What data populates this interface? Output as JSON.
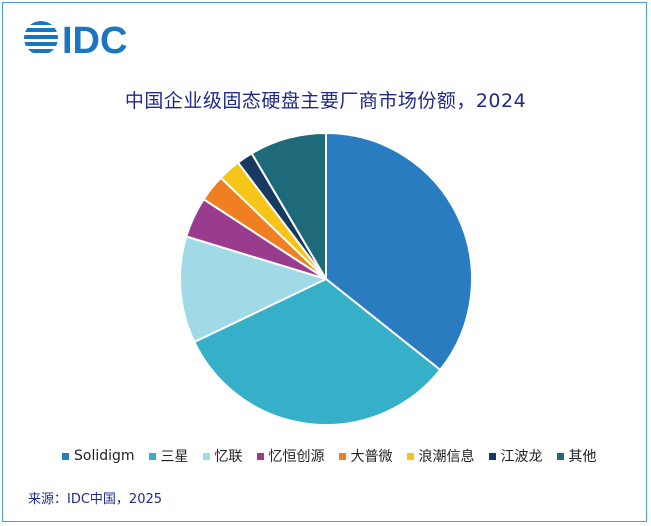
{
  "logo": {
    "text": "IDC"
  },
  "title": "中国企业级固态硬盘主要厂商市场份额，2024",
  "source": "来源：IDC中国，2025",
  "colors": {
    "frame": "#4a9fd6",
    "title": "#1f2a8a",
    "logo": "#1a75c2"
  },
  "chart_data": {
    "type": "pie",
    "title": "中国企业级固态硬盘主要厂商市场份额，2024",
    "legend_position": "bottom",
    "start_angle_deg": 0,
    "direction": "clockwise",
    "slices": [
      {
        "label": "Solidigm",
        "value": 35.7,
        "color": "#2a7cc1"
      },
      {
        "label": "三星",
        "value": 32.2,
        "color": "#35b0c8"
      },
      {
        "label": "忆联",
        "value": 11.8,
        "color": "#9fdae6"
      },
      {
        "label": "忆恒创源",
        "value": 4.5,
        "color": "#9a3c8e"
      },
      {
        "label": "大普微",
        "value": 3.0,
        "color": "#f07f22"
      },
      {
        "label": "浪潮信息",
        "value": 2.5,
        "color": "#f5c518"
      },
      {
        "label": "江波龙",
        "value": 1.8,
        "color": "#163a5f"
      },
      {
        "label": "其他",
        "value": 8.5,
        "color": "#1f6a7a"
      }
    ]
  }
}
